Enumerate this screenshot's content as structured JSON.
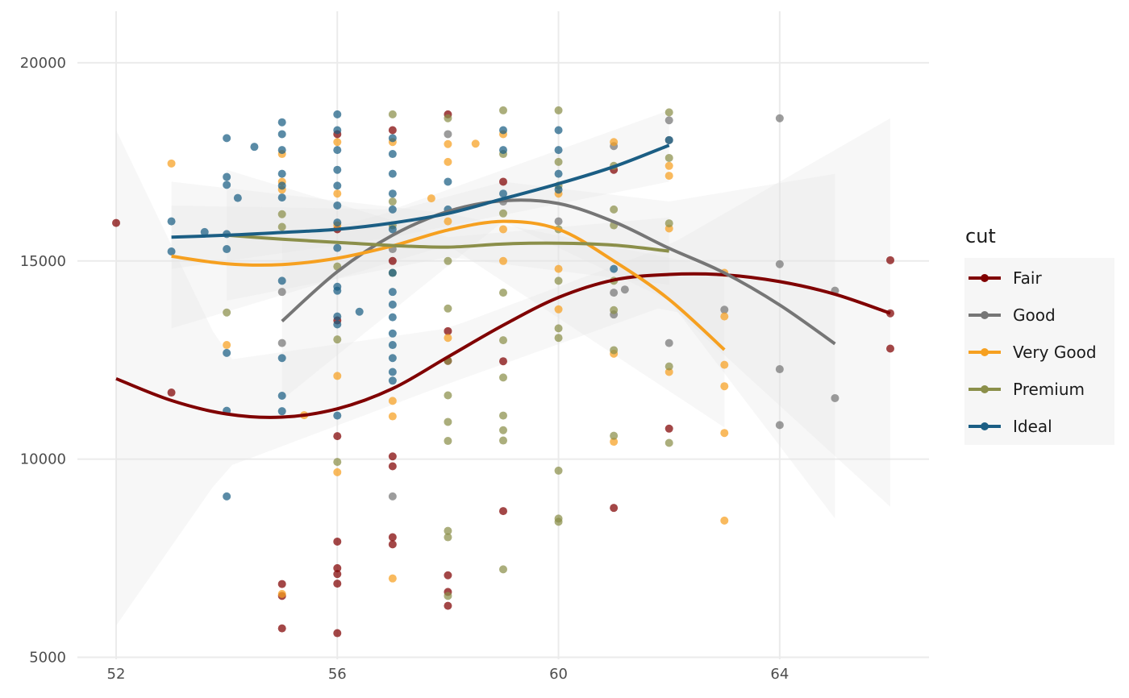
{
  "chart_data": {
    "type": "scatter",
    "title": "",
    "xlabel": "",
    "ylabel": "",
    "xlim": [
      51.3,
      66.7
    ],
    "ylim": [
      4950,
      21300
    ],
    "x_ticks": [
      52,
      56,
      60,
      64
    ],
    "y_ticks": [
      5000,
      10000,
      15000,
      20000
    ],
    "x_tick_labels": [
      "52",
      "56",
      "60",
      "64"
    ],
    "y_tick_labels": [
      "5000",
      "10000",
      "15000",
      "20000"
    ],
    "grid": true,
    "legend": {
      "title": "cut",
      "placement": "right"
    },
    "series": [
      {
        "name": "Fair",
        "color": "#800000",
        "points": [
          [
            52,
            15960
          ],
          [
            53,
            11680
          ],
          [
            55,
            6850
          ],
          [
            55,
            6550
          ],
          [
            55,
            5730
          ],
          [
            56,
            10580
          ],
          [
            56,
            7920
          ],
          [
            56,
            7250
          ],
          [
            56,
            7100
          ],
          [
            56,
            6860
          ],
          [
            56,
            5610
          ],
          [
            56,
            15800
          ],
          [
            56,
            18200
          ],
          [
            56,
            13500
          ],
          [
            57,
            10070
          ],
          [
            57,
            9820
          ],
          [
            57,
            8030
          ],
          [
            57,
            7850
          ],
          [
            57,
            15000
          ],
          [
            57,
            18300
          ],
          [
            58,
            13230
          ],
          [
            58,
            12480
          ],
          [
            58,
            7070
          ],
          [
            58,
            6650
          ],
          [
            58,
            6300
          ],
          [
            58,
            18700
          ],
          [
            59,
            12470
          ],
          [
            59,
            8690
          ],
          [
            59,
            17000
          ],
          [
            61,
            17300
          ],
          [
            61,
            8770
          ],
          [
            62,
            10770
          ],
          [
            66,
            15020
          ],
          [
            66,
            13680
          ],
          [
            66,
            12790
          ]
        ],
        "smooth": [
          [
            52,
            12030
          ],
          [
            53,
            11480
          ],
          [
            54,
            11140
          ],
          [
            55,
            11060
          ],
          [
            56,
            11270
          ],
          [
            57,
            11780
          ],
          [
            58,
            12580
          ],
          [
            59,
            13380
          ],
          [
            60,
            14080
          ],
          [
            61,
            14520
          ],
          [
            62,
            14660
          ],
          [
            63,
            14650
          ],
          [
            64,
            14480
          ],
          [
            65,
            14160
          ],
          [
            66,
            13680
          ]
        ],
        "band": [
          [
            52,
            5800,
            18300
          ],
          [
            54,
            9800,
            12500
          ],
          [
            58,
            11900,
            13300
          ],
          [
            62,
            13900,
            15400
          ],
          [
            66,
            8800,
            18600
          ]
        ]
      },
      {
        "name": "Good",
        "color": "#767676",
        "points": [
          [
            55,
            14220
          ],
          [
            55,
            12930
          ],
          [
            57,
            9060
          ],
          [
            57,
            15300
          ],
          [
            58,
            18200
          ],
          [
            59,
            16500
          ],
          [
            60,
            16000
          ],
          [
            61,
            17900
          ],
          [
            61,
            14200
          ],
          [
            61,
            13650
          ],
          [
            61.2,
            14280
          ],
          [
            62,
            18550
          ],
          [
            62,
            18050
          ],
          [
            62,
            12930
          ],
          [
            63,
            13770
          ],
          [
            64,
            18600
          ],
          [
            64,
            14920
          ],
          [
            64,
            12270
          ],
          [
            64,
            10860
          ],
          [
            65,
            14250
          ],
          [
            65,
            11540
          ]
        ],
        "smooth": [
          [
            55,
            13480
          ],
          [
            56,
            14730
          ],
          [
            57,
            15650
          ],
          [
            58,
            16250
          ],
          [
            59,
            16520
          ],
          [
            60,
            16450
          ],
          [
            61,
            15990
          ],
          [
            62,
            15320
          ],
          [
            63,
            14700
          ],
          [
            64,
            13890
          ],
          [
            65,
            12910
          ]
        ],
        "band": [
          [
            55,
            11500,
            15500
          ],
          [
            59,
            16000,
            17000
          ],
          [
            62,
            14000,
            16500
          ],
          [
            65,
            8500,
            17200
          ]
        ]
      },
      {
        "name": "Very Good",
        "color": "#f6a020",
        "points": [
          [
            53,
            17460
          ],
          [
            54,
            12880
          ],
          [
            55,
            17700
          ],
          [
            55,
            17000
          ],
          [
            55,
            16800
          ],
          [
            55,
            6600
          ],
          [
            55.4,
            11110
          ],
          [
            56,
            16700
          ],
          [
            56,
            15900
          ],
          [
            56,
            12100
          ],
          [
            56,
            9670
          ],
          [
            56,
            18000
          ],
          [
            57,
            11470
          ],
          [
            57,
            11080
          ],
          [
            57,
            6990
          ],
          [
            57,
            18000
          ],
          [
            57.7,
            16580
          ],
          [
            58,
            17950
          ],
          [
            58,
            17500
          ],
          [
            58,
            13060
          ],
          [
            58,
            16000
          ],
          [
            58.5,
            17960
          ],
          [
            59,
            18200
          ],
          [
            59,
            15800
          ],
          [
            59,
            15000
          ],
          [
            60,
            16700
          ],
          [
            60,
            14800
          ],
          [
            60,
            13780
          ],
          [
            61,
            18000
          ],
          [
            61,
            12660
          ],
          [
            61,
            10440
          ],
          [
            62,
            17400
          ],
          [
            62,
            17150
          ],
          [
            62,
            15820
          ],
          [
            62,
            12200
          ],
          [
            63,
            14700
          ],
          [
            63,
            13600
          ],
          [
            63,
            12380
          ],
          [
            63,
            11840
          ],
          [
            63,
            10660
          ],
          [
            63,
            8450
          ]
        ],
        "smooth": [
          [
            53,
            15120
          ],
          [
            54,
            14930
          ],
          [
            55,
            14910
          ],
          [
            56,
            15070
          ],
          [
            57,
            15380
          ],
          [
            58,
            15780
          ],
          [
            59,
            16000
          ],
          [
            60,
            15800
          ],
          [
            61,
            15000
          ],
          [
            62,
            14030
          ],
          [
            63,
            12760
          ]
        ],
        "band": [
          [
            53,
            13300,
            17000
          ],
          [
            58,
            15400,
            16200
          ],
          [
            63,
            10800,
            14800
          ]
        ]
      },
      {
        "name": "Premium",
        "color": "#8b8f4a",
        "points": [
          [
            54,
            13700
          ],
          [
            55,
            16180
          ],
          [
            55,
            15860
          ],
          [
            56,
            14860
          ],
          [
            56,
            13020
          ],
          [
            56,
            9930
          ],
          [
            57,
            18700
          ],
          [
            57,
            16500
          ],
          [
            57,
            15900
          ],
          [
            57,
            14700
          ],
          [
            58,
            18600
          ],
          [
            58,
            15000
          ],
          [
            58,
            13800
          ],
          [
            58,
            12480
          ],
          [
            58,
            11610
          ],
          [
            58,
            10940
          ],
          [
            58,
            10460
          ],
          [
            58,
            8190
          ],
          [
            58,
            8030
          ],
          [
            58,
            6550
          ],
          [
            59,
            18800
          ],
          [
            59,
            17700
          ],
          [
            59,
            16200
          ],
          [
            59,
            14200
          ],
          [
            59,
            13000
          ],
          [
            59,
            12060
          ],
          [
            59,
            11100
          ],
          [
            59,
            10730
          ],
          [
            59,
            10470
          ],
          [
            59,
            7220
          ],
          [
            60,
            18800
          ],
          [
            60,
            17500
          ],
          [
            60,
            16900
          ],
          [
            60,
            15800
          ],
          [
            60,
            14500
          ],
          [
            60,
            13300
          ],
          [
            60,
            13060
          ],
          [
            60,
            9710
          ],
          [
            60,
            8500
          ],
          [
            60,
            8420
          ],
          [
            61,
            17400
          ],
          [
            61,
            16300
          ],
          [
            61,
            15900
          ],
          [
            61,
            14500
          ],
          [
            61,
            13760
          ],
          [
            61,
            12750
          ],
          [
            61,
            10590
          ],
          [
            62,
            18750
          ],
          [
            62,
            17600
          ],
          [
            62,
            15950
          ],
          [
            62,
            12340
          ],
          [
            62,
            10410
          ]
        ],
        "smooth": [
          [
            54,
            15650
          ],
          [
            55,
            15550
          ],
          [
            56,
            15470
          ],
          [
            57,
            15390
          ],
          [
            58,
            15350
          ],
          [
            59,
            15430
          ],
          [
            60,
            15450
          ],
          [
            61,
            15400
          ],
          [
            62,
            15250
          ]
        ],
        "band": [
          [
            54,
            14000,
            17300
          ],
          [
            58,
            15100,
            15600
          ],
          [
            62,
            14400,
            16100
          ]
        ]
      },
      {
        "name": "Ideal",
        "color": "#1b5e84",
        "points": [
          [
            53,
            16000
          ],
          [
            53,
            15240
          ],
          [
            53.6,
            15730
          ],
          [
            54,
            18100
          ],
          [
            54,
            17120
          ],
          [
            54,
            16920
          ],
          [
            54,
            15680
          ],
          [
            54,
            15300
          ],
          [
            54,
            12680
          ],
          [
            54,
            11220
          ],
          [
            54,
            9060
          ],
          [
            54.2,
            16590
          ],
          [
            54.5,
            17880
          ],
          [
            55,
            18500
          ],
          [
            55,
            18200
          ],
          [
            55,
            17800
          ],
          [
            55,
            17200
          ],
          [
            55,
            16900
          ],
          [
            55,
            16600
          ],
          [
            55,
            14500
          ],
          [
            55,
            12550
          ],
          [
            55,
            11600
          ],
          [
            55,
            11210
          ],
          [
            56,
            18700
          ],
          [
            56,
            18300
          ],
          [
            56,
            17800
          ],
          [
            56,
            17300
          ],
          [
            56,
            16900
          ],
          [
            56,
            16400
          ],
          [
            56,
            15970
          ],
          [
            56,
            15330
          ],
          [
            56,
            14350
          ],
          [
            56,
            14250
          ],
          [
            56,
            13600
          ],
          [
            56,
            13400
          ],
          [
            56,
            11100
          ],
          [
            56.4,
            13720
          ],
          [
            57,
            18100
          ],
          [
            57,
            17700
          ],
          [
            57,
            17200
          ],
          [
            57,
            16700
          ],
          [
            57,
            16300
          ],
          [
            57,
            15800
          ],
          [
            57,
            14700
          ],
          [
            57,
            14220
          ],
          [
            57,
            13900
          ],
          [
            57,
            13580
          ],
          [
            57,
            13170
          ],
          [
            57,
            12880
          ],
          [
            57,
            12550
          ],
          [
            57,
            12200
          ],
          [
            57,
            11980
          ],
          [
            58,
            17000
          ],
          [
            58,
            16300
          ],
          [
            59,
            18300
          ],
          [
            59,
            17800
          ],
          [
            59,
            16700
          ],
          [
            60,
            18300
          ],
          [
            60,
            17800
          ],
          [
            60,
            17200
          ],
          [
            60,
            16800
          ],
          [
            61,
            14800
          ],
          [
            62,
            18050
          ]
        ],
        "smooth": [
          [
            53,
            15600
          ],
          [
            54,
            15650
          ],
          [
            55,
            15720
          ],
          [
            56,
            15800
          ],
          [
            57,
            15960
          ],
          [
            58,
            16200
          ],
          [
            59,
            16570
          ],
          [
            60,
            16950
          ],
          [
            61,
            17380
          ],
          [
            62,
            17920
          ]
        ],
        "band": [
          [
            53,
            14800,
            16400
          ],
          [
            57,
            15600,
            16300
          ],
          [
            62,
            17000,
            18800
          ]
        ]
      }
    ]
  }
}
